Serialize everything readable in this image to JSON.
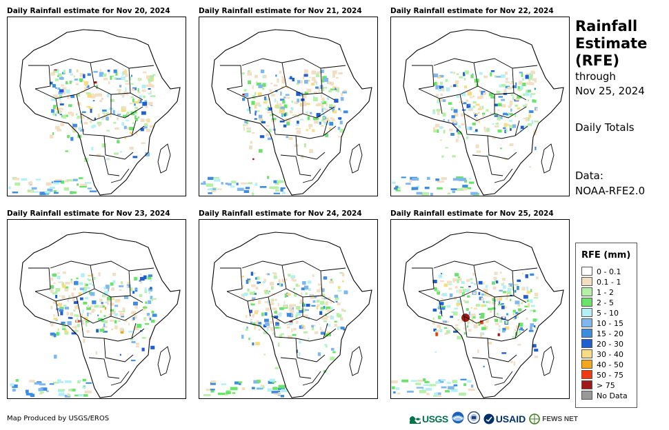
{
  "panels": [
    {
      "title": "Daily Rainfall estimate for Nov 20, 2024"
    },
    {
      "title": "Daily Rainfall estimate for Nov 21, 2024"
    },
    {
      "title": "Daily Rainfall estimate for Nov 22, 2024"
    },
    {
      "title": "Daily Rainfall estimate for Nov 23, 2024"
    },
    {
      "title": "Daily Rainfall estimate for Nov 24, 2024"
    },
    {
      "title": "Daily Rainfall estimate for Nov 25, 2024"
    }
  ],
  "header": {
    "title": "Rainfall\nEstimate\n(RFE)",
    "through_label": "through",
    "through_date": "Nov 25, 2024",
    "subtitle": "Daily Totals",
    "data_label": "Data:",
    "data_source": "NOAA-RFE2.0"
  },
  "legend": {
    "title": "RFE (mm)",
    "items": [
      {
        "label": "0 - 0.1",
        "color": "#ffffff"
      },
      {
        "label": "0.1 - 1",
        "color": "#f2dfc3"
      },
      {
        "label": "1 - 2",
        "color": "#b5f0a8"
      },
      {
        "label": "2 - 5",
        "color": "#6ae36a"
      },
      {
        "label": "5 - 10",
        "color": "#b3f0f5"
      },
      {
        "label": "10 - 15",
        "color": "#7fb8ee"
      },
      {
        "label": "15 - 20",
        "color": "#3c8de0"
      },
      {
        "label": "20 - 30",
        "color": "#1f5fd0"
      },
      {
        "label": "30 - 40",
        "color": "#f7dc83"
      },
      {
        "label": "40 - 50",
        "color": "#f4a71b"
      },
      {
        "label": "50 - 75",
        "color": "#f03a10"
      },
      {
        "label": "> 75",
        "color": "#a01818"
      },
      {
        "label": "No Data",
        "color": "#999999"
      }
    ]
  },
  "footer": {
    "credit": "Map Produced by USGS/EROS",
    "logos": [
      {
        "name": "usgs-logo",
        "text": "USGS"
      },
      {
        "name": "noaa-logo",
        "text": ""
      },
      {
        "name": "dhs-logo",
        "text": ""
      },
      {
        "name": "usaid-logo",
        "text": "USAID"
      },
      {
        "name": "fews-net-logo",
        "text": "FEWS NET"
      }
    ]
  }
}
